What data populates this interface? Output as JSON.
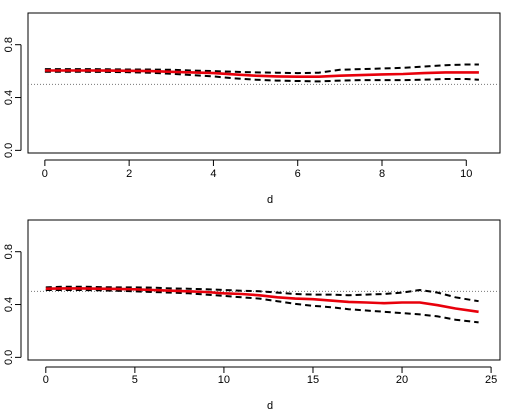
{
  "chart_data": [
    {
      "type": "line",
      "title": "",
      "xlabel": "d",
      "ylabel": "",
      "xlim": [
        -0.4,
        10.8
      ],
      "ylim": [
        -0.02,
        1.04
      ],
      "xticks": [
        0,
        2,
        4,
        6,
        8,
        10
      ],
      "yticks": [
        0.0,
        0.4,
        0.8
      ],
      "ytick_labels": [
        "0.0",
        "0.4",
        "0.8"
      ],
      "reference_line": 0.5,
      "x": [
        0,
        0.5,
        1,
        1.5,
        2,
        2.5,
        3,
        3.5,
        4,
        4.5,
        5,
        5.5,
        6,
        6.5,
        7,
        7.5,
        8,
        8.5,
        9,
        9.5,
        10,
        10.3
      ],
      "series": [
        {
          "role": "estimate",
          "color": "#e8000b",
          "style": "solid",
          "values": [
            0.605,
            0.605,
            0.605,
            0.604,
            0.602,
            0.6,
            0.595,
            0.59,
            0.585,
            0.575,
            0.565,
            0.56,
            0.558,
            0.558,
            0.565,
            0.57,
            0.575,
            0.578,
            0.585,
            0.59,
            0.59,
            0.59
          ]
        },
        {
          "role": "upper",
          "color": "#000000",
          "style": "dashed",
          "values": [
            0.615,
            0.615,
            0.615,
            0.614,
            0.612,
            0.612,
            0.61,
            0.605,
            0.6,
            0.595,
            0.59,
            0.588,
            0.585,
            0.588,
            0.61,
            0.615,
            0.62,
            0.625,
            0.635,
            0.645,
            0.65,
            0.65
          ]
        },
        {
          "role": "lower",
          "color": "#000000",
          "style": "dashed",
          "values": [
            0.595,
            0.595,
            0.595,
            0.594,
            0.592,
            0.588,
            0.58,
            0.57,
            0.56,
            0.545,
            0.535,
            0.528,
            0.525,
            0.522,
            0.528,
            0.532,
            0.532,
            0.532,
            0.535,
            0.54,
            0.54,
            0.535
          ]
        }
      ]
    },
    {
      "type": "line",
      "title": "",
      "xlabel": "d",
      "ylabel": "",
      "xlim": [
        -1,
        25.5
      ],
      "ylim": [
        -0.02,
        1.04
      ],
      "xticks": [
        0,
        5,
        10,
        15,
        20,
        25
      ],
      "yticks": [
        0.0,
        0.4,
        0.8
      ],
      "ytick_labels": [
        "0.0",
        "0.4",
        "0.8"
      ],
      "reference_line": 0.5,
      "x": [
        0,
        1,
        2,
        3,
        4,
        5,
        6,
        7,
        8,
        9,
        10,
        11,
        12,
        13,
        14,
        15,
        16,
        17,
        18,
        19,
        20,
        21,
        22,
        23,
        24.3
      ],
      "series": [
        {
          "role": "estimate",
          "color": "#e8000b",
          "style": "solid",
          "values": [
            0.52,
            0.522,
            0.522,
            0.52,
            0.518,
            0.515,
            0.51,
            0.505,
            0.5,
            0.495,
            0.485,
            0.48,
            0.47,
            0.455,
            0.445,
            0.44,
            0.43,
            0.42,
            0.415,
            0.41,
            0.415,
            0.415,
            0.395,
            0.37,
            0.345
          ]
        },
        {
          "role": "upper",
          "color": "#000000",
          "style": "dashed",
          "values": [
            0.53,
            0.535,
            0.535,
            0.532,
            0.53,
            0.53,
            0.528,
            0.522,
            0.52,
            0.515,
            0.51,
            0.505,
            0.5,
            0.49,
            0.48,
            0.475,
            0.475,
            0.47,
            0.475,
            0.48,
            0.49,
            0.51,
            0.49,
            0.455,
            0.425
          ]
        },
        {
          "role": "lower",
          "color": "#000000",
          "style": "dashed",
          "values": [
            0.51,
            0.51,
            0.51,
            0.508,
            0.505,
            0.5,
            0.495,
            0.49,
            0.485,
            0.475,
            0.465,
            0.455,
            0.445,
            0.425,
            0.405,
            0.39,
            0.38,
            0.365,
            0.355,
            0.345,
            0.335,
            0.325,
            0.31,
            0.285,
            0.265
          ]
        }
      ]
    }
  ]
}
